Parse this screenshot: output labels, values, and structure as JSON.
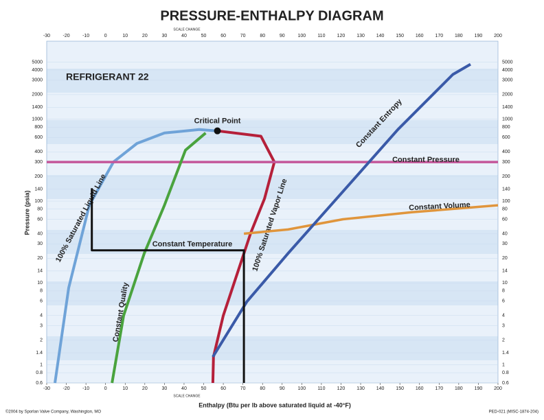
{
  "chart_data": {
    "type": "line",
    "title": "PRESSURE-ENTHALPY DIAGRAM",
    "subtitle": "REFRIGERANT 22",
    "x_label": "Enthalpy (Btu per lb above saturated liquid at -40°F)",
    "y_label": "Pressure (psia)",
    "scale_notes": [
      "SCALE CHANGE",
      "SCALE CHANGE"
    ],
    "footer_left": "©2004 by Sporlan Valve Company, Washington, MO",
    "footer_right": "PED-021 (MISC-1874-204)",
    "log_y": true,
    "grid": true,
    "xlim": [
      -30,
      200
    ],
    "xticks": [
      -30,
      -20,
      -10,
      0,
      10,
      20,
      30,
      40,
      50,
      60,
      70,
      80,
      90,
      100,
      110,
      120,
      130,
      140,
      150,
      160,
      170,
      180,
      190,
      200
    ],
    "ylim": [
      0.6,
      9000
    ],
    "yticks": [
      0.6,
      0.8,
      1,
      1.4,
      2,
      3,
      4,
      6,
      8,
      10,
      14,
      20,
      30,
      40,
      60,
      80,
      100,
      140,
      200,
      300,
      400,
      600,
      800,
      1000,
      1400,
      2000,
      3000,
      4000,
      5000
    ],
    "critical_point": {
      "label": "Critical Point",
      "x": 57,
      "value": 722
    },
    "series": [
      {
        "name": "100% Saturated Liquid Line",
        "color": "#6fa3d8",
        "x": [
          -25.8,
          -18.8,
          -8.3,
          4,
          16,
          30,
          47.7,
          57
        ],
        "values": [
          0.6,
          8.7,
          89,
          300,
          507,
          680,
          750,
          722
        ]
      },
      {
        "name": "100% Saturated Vapor Line",
        "color": "#b5203a",
        "x": [
          57,
          79.2,
          86,
          81,
          74,
          67,
          60,
          55,
          54.7
        ],
        "values": [
          722,
          621,
          300,
          107,
          41,
          12.8,
          4,
          1.25,
          0.6
        ]
      },
      {
        "name": "Constant Pressure",
        "color": "#c4569a",
        "x": [
          -30,
          200
        ],
        "values": [
          300,
          300
        ]
      },
      {
        "name": "Constant Volume",
        "color": "#e0953c",
        "x": [
          70.5,
          93,
          121,
          156,
          200
        ],
        "values": [
          40,
          45,
          60,
          73,
          89
        ]
      },
      {
        "name": "Constant Entropy",
        "color": "#3a5aa8",
        "x": [
          54.7,
          72,
          93,
          121,
          149,
          177,
          186
        ],
        "values": [
          1.25,
          5.9,
          23,
          131,
          750,
          3530,
          4700
        ]
      },
      {
        "name": "Constant Quality",
        "color": "#4aa33e",
        "x": [
          3.3,
          9.2,
          19.7,
          30,
          40.7,
          51
        ],
        "values": [
          0.6,
          4,
          23,
          89,
          419,
          680
        ]
      },
      {
        "name": "Constant Temperature",
        "color": "#111111",
        "x": [
          -7,
          -7,
          70.5,
          70.5
        ],
        "values": [
          144,
          25,
          25,
          0.6
        ]
      }
    ]
  }
}
